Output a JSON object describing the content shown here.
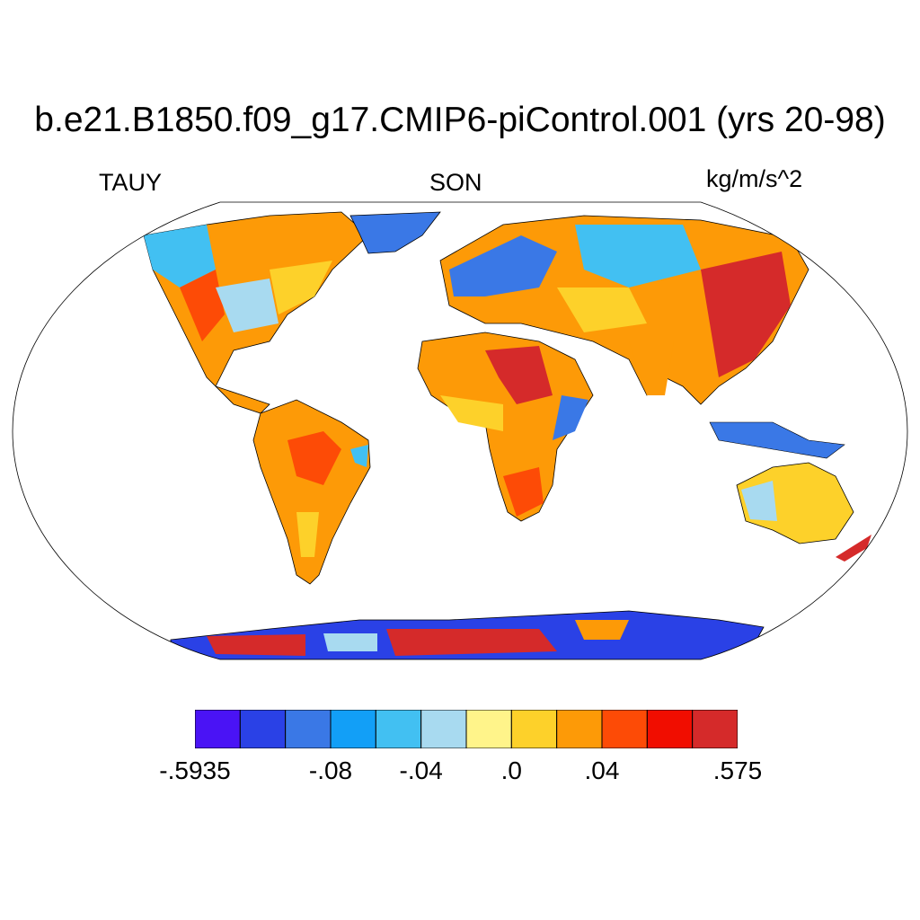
{
  "title": "b.e21.B1850.f09_g17.CMIP6-piControl.001 (yrs 20-98)",
  "left_label": "TAUY",
  "center_label": "SON",
  "right_label": "kg/m/s^2",
  "colorbar": {
    "colors": [
      "#4a13f5",
      "#2a41e6",
      "#3a78e6",
      "#129ff7",
      "#42c0f2",
      "#a8daf0",
      "#fff48a",
      "#fdd12a",
      "#fd9a07",
      "#fd4b06",
      "#f10d00",
      "#d52a2a"
    ],
    "labels": [
      {
        "text": ".5935",
        "prefix": "-",
        "boundary": 0
      },
      {
        "text": ".08",
        "prefix": "-",
        "boundary": 3
      },
      {
        "text": ".04",
        "prefix": "-",
        "boundary": 5
      },
      {
        "text": ".0",
        "prefix": "",
        "boundary": 7
      },
      {
        "text": ".04",
        "prefix": "",
        "boundary": 9
      },
      {
        "text": ".575",
        "prefix": "",
        "boundary": 12
      }
    ]
  }
}
